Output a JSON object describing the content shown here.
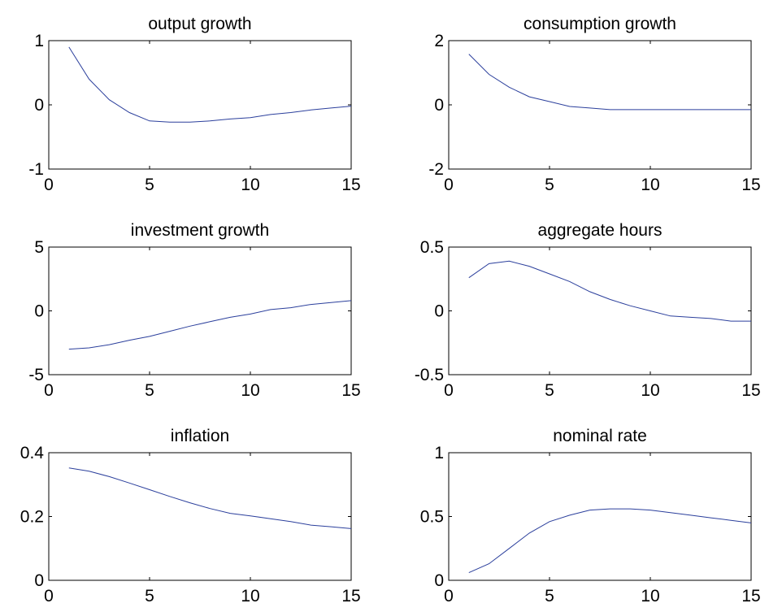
{
  "chart_data": [
    {
      "type": "line",
      "title": "output growth",
      "xlabel": "",
      "ylabel": "",
      "xlim": [
        0,
        15
      ],
      "ylim": [
        -1,
        1
      ],
      "xticks": [
        0,
        5,
        10,
        15
      ],
      "yticks": [
        -1,
        0,
        1
      ],
      "xtick_labels": [
        "0",
        "5",
        "10",
        "15"
      ],
      "ytick_labels": [
        "-1",
        "0",
        "1"
      ],
      "grid": false,
      "x": [
        1,
        2,
        3,
        4,
        5,
        6,
        7,
        8,
        9,
        10,
        11,
        12,
        13,
        14,
        15
      ],
      "series": [
        {
          "color": "#2b3f9c",
          "values": [
            0.9,
            0.4,
            0.08,
            -0.12,
            -0.25,
            -0.27,
            -0.27,
            -0.25,
            -0.22,
            -0.2,
            -0.15,
            -0.12,
            -0.08,
            -0.05,
            -0.02
          ]
        }
      ]
    },
    {
      "type": "line",
      "title": "consumption growth",
      "xlabel": "",
      "ylabel": "",
      "xlim": [
        0,
        15
      ],
      "ylim": [
        -2,
        2
      ],
      "xticks": [
        0,
        5,
        10,
        15
      ],
      "yticks": [
        -2,
        0,
        2
      ],
      "xtick_labels": [
        "0",
        "5",
        "10",
        "15"
      ],
      "ytick_labels": [
        "-2",
        "0",
        "2"
      ],
      "grid": false,
      "x": [
        1,
        2,
        3,
        4,
        5,
        6,
        7,
        8,
        9,
        10,
        11,
        12,
        13,
        14,
        15
      ],
      "series": [
        {
          "color": "#2b3f9c",
          "values": [
            1.58,
            0.95,
            0.55,
            0.25,
            0.1,
            -0.05,
            -0.1,
            -0.15,
            -0.15,
            -0.15,
            -0.15,
            -0.15,
            -0.15,
            -0.15,
            -0.15
          ]
        }
      ]
    },
    {
      "type": "line",
      "title": "investment growth",
      "xlabel": "",
      "ylabel": "",
      "xlim": [
        0,
        15
      ],
      "ylim": [
        -5,
        5
      ],
      "xticks": [
        0,
        5,
        10,
        15
      ],
      "yticks": [
        -5,
        0,
        5
      ],
      "xtick_labels": [
        "0",
        "5",
        "10",
        "15"
      ],
      "ytick_labels": [
        "-5",
        "0",
        "5"
      ],
      "grid": false,
      "x": [
        1,
        2,
        3,
        4,
        5,
        6,
        7,
        8,
        9,
        10,
        11,
        12,
        13,
        14,
        15
      ],
      "series": [
        {
          "color": "#2b3f9c",
          "values": [
            -3.0,
            -2.9,
            -2.65,
            -2.3,
            -2.0,
            -1.6,
            -1.2,
            -0.85,
            -0.5,
            -0.25,
            0.1,
            0.25,
            0.5,
            0.65,
            0.8
          ]
        }
      ]
    },
    {
      "type": "line",
      "title": "aggregate hours",
      "xlabel": "",
      "ylabel": "",
      "xlim": [
        0,
        15
      ],
      "ylim": [
        -0.5,
        0.5
      ],
      "xticks": [
        0,
        5,
        10,
        15
      ],
      "yticks": [
        -0.5,
        0,
        0.5
      ],
      "xtick_labels": [
        "0",
        "5",
        "10",
        "15"
      ],
      "ytick_labels": [
        "-0.5",
        "0",
        "0.5"
      ],
      "grid": false,
      "x": [
        1,
        2,
        3,
        4,
        5,
        6,
        7,
        8,
        9,
        10,
        11,
        12,
        13,
        14,
        15
      ],
      "series": [
        {
          "color": "#2b3f9c",
          "values": [
            0.26,
            0.37,
            0.39,
            0.35,
            0.29,
            0.23,
            0.15,
            0.09,
            0.04,
            0.0,
            -0.04,
            -0.05,
            -0.06,
            -0.08,
            -0.08
          ]
        }
      ]
    },
    {
      "type": "line",
      "title": "inflation",
      "xlabel": "",
      "ylabel": "",
      "xlim": [
        0,
        15
      ],
      "ylim": [
        0,
        0.4
      ],
      "xticks": [
        0,
        5,
        10,
        15
      ],
      "yticks": [
        0,
        0.2,
        0.4
      ],
      "xtick_labels": [
        "0",
        "5",
        "10",
        "15"
      ],
      "ytick_labels": [
        "0",
        "0.2",
        "0.4"
      ],
      "grid": false,
      "x": [
        1,
        2,
        3,
        4,
        5,
        6,
        7,
        8,
        9,
        10,
        11,
        12,
        13,
        14,
        15
      ],
      "series": [
        {
          "color": "#2b3f9c",
          "values": [
            0.352,
            0.342,
            0.325,
            0.305,
            0.284,
            0.263,
            0.243,
            0.225,
            0.21,
            0.202,
            0.193,
            0.184,
            0.173,
            0.168,
            0.162
          ]
        }
      ]
    },
    {
      "type": "line",
      "title": "nominal rate",
      "xlabel": "",
      "ylabel": "",
      "xlim": [
        0,
        15
      ],
      "ylim": [
        0,
        1
      ],
      "xticks": [
        0,
        5,
        10,
        15
      ],
      "yticks": [
        0,
        0.5,
        1
      ],
      "xtick_labels": [
        "0",
        "5",
        "10",
        "15"
      ],
      "ytick_labels": [
        "0",
        "0.5",
        "1"
      ],
      "grid": false,
      "x": [
        1,
        2,
        3,
        4,
        5,
        6,
        7,
        8,
        9,
        10,
        11,
        12,
        13,
        14,
        15
      ],
      "series": [
        {
          "color": "#2b3f9c",
          "values": [
            0.06,
            0.13,
            0.25,
            0.37,
            0.46,
            0.51,
            0.55,
            0.56,
            0.56,
            0.55,
            0.53,
            0.51,
            0.49,
            0.47,
            0.45
          ]
        }
      ]
    }
  ]
}
